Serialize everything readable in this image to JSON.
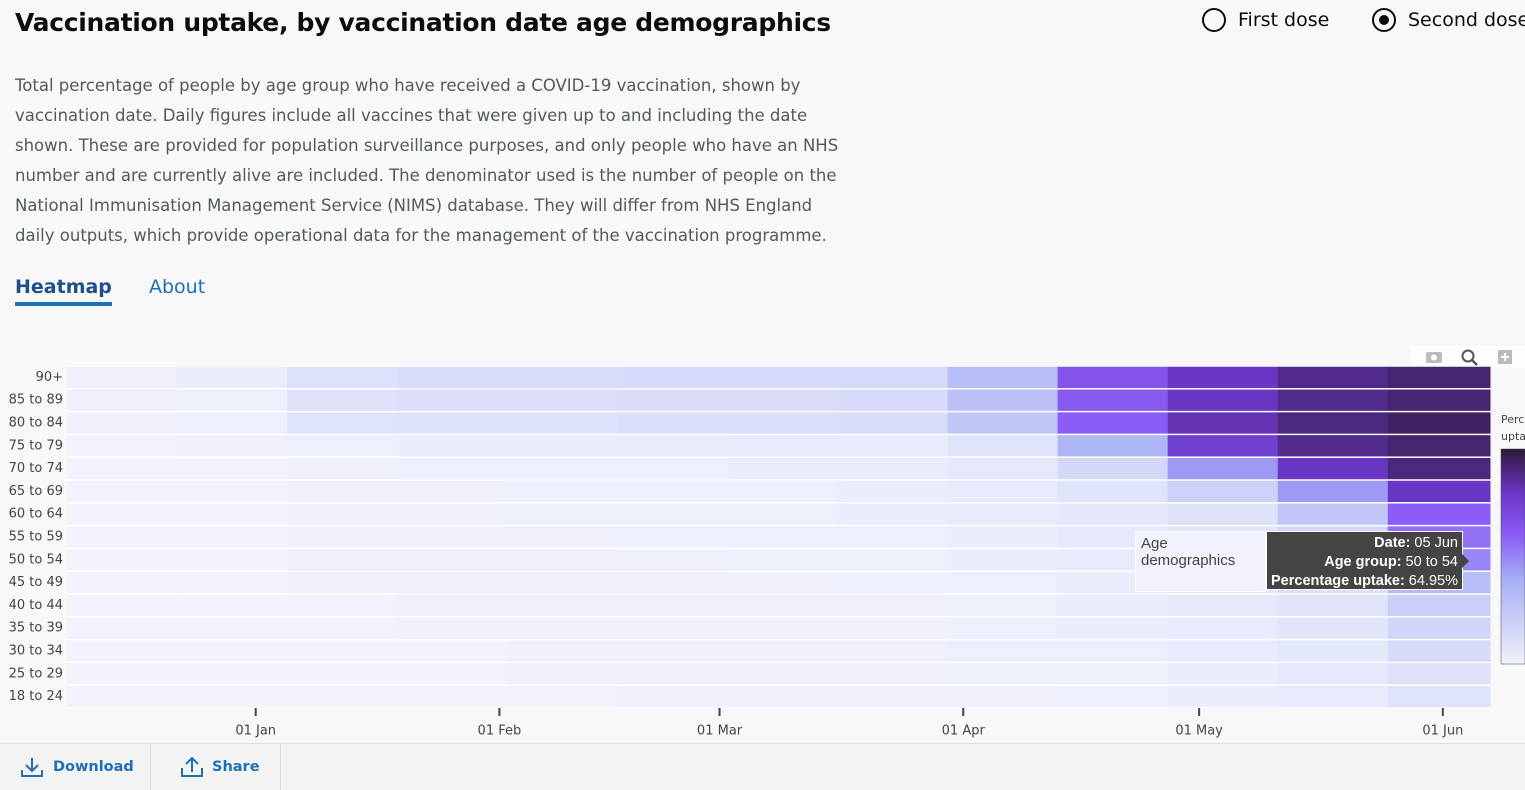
{
  "header": {
    "title": "Vaccination uptake, by vaccination date age demographics",
    "radio": [
      {
        "label": "First dose",
        "selected": false
      },
      {
        "label": "Second dose",
        "selected": true
      }
    ]
  },
  "description": [
    "Total percentage of people by age group who have received a COVID-19 vaccination, shown by",
    "vaccination date. Daily figures include all vaccines that were given up to and including the date",
    "shown. These are provided for population surveillance purposes, and only people who have an NHS",
    "number and are currently alive are included. The denominator used is the number of people on the",
    "National Immunisation Management Service (NIMS) database. They will differ from NHS England",
    "daily outputs, which provide operational data for the management of the vaccination programme."
  ],
  "tabs": [
    {
      "label": "Heatmap",
      "active": true
    },
    {
      "label": "About",
      "active": false
    }
  ],
  "chart_data": {
    "type": "heatmap",
    "categories": [
      "90+",
      "85 to 89",
      "80 to 84",
      "75 to 79",
      "70 to 74",
      "65 to 69",
      "60 to 64",
      "55 to 59",
      "50 to 54",
      "45 to 49",
      "40 to 44",
      "35 to 39",
      "30 to 34",
      "25 to 29",
      "18 to 24"
    ],
    "x": [
      "08 Dec",
      "22 Dec",
      "05 Jan",
      "19 Jan",
      "02 Feb",
      "16 Feb",
      "02 Mar",
      "16 Mar",
      "30 Mar",
      "13 Apr",
      "27 Apr",
      "11 May",
      "25 May"
    ],
    "xlim": [
      "08 Dec",
      "07 Jun"
    ],
    "xticks": [
      "01 Jan",
      "01 Feb",
      "01 Mar",
      "01 Apr",
      "01 May",
      "01 Jun"
    ],
    "z": [
      [
        1,
        3,
        10,
        12,
        12,
        13,
        13,
        14,
        30,
        65,
        80,
        88,
        92
      ],
      [
        1,
        2,
        9,
        11,
        11,
        12,
        12,
        13,
        28,
        62,
        80,
        88,
        92
      ],
      [
        1,
        2,
        8,
        10,
        10,
        11,
        11,
        12,
        25,
        60,
        82,
        90,
        94
      ],
      [
        0,
        1,
        2,
        3,
        3,
        3,
        4,
        4,
        8,
        35,
        75,
        88,
        92
      ],
      [
        0,
        0,
        1,
        2,
        2,
        2,
        3,
        3,
        5,
        15,
        45,
        80,
        90
      ],
      [
        0,
        0,
        1,
        1,
        2,
        2,
        2,
        3,
        4,
        8,
        18,
        45,
        80
      ],
      [
        0,
        0,
        1,
        1,
        2,
        2,
        2,
        3,
        4,
        6,
        10,
        25,
        60
      ],
      [
        0,
        0,
        1,
        1,
        1,
        2,
        2,
        2,
        3,
        5,
        8,
        15,
        55
      ],
      [
        0,
        0,
        1,
        1,
        1,
        1,
        2,
        2,
        3,
        4,
        7,
        12,
        50
      ],
      [
        0,
        0,
        1,
        1,
        1,
        1,
        1,
        2,
        2,
        3,
        6,
        10,
        30
      ],
      [
        0,
        0,
        0,
        1,
        1,
        1,
        1,
        1,
        2,
        3,
        5,
        8,
        20
      ],
      [
        0,
        0,
        0,
        1,
        1,
        1,
        1,
        1,
        2,
        3,
        4,
        7,
        16
      ],
      [
        0,
        0,
        0,
        0,
        1,
        1,
        1,
        1,
        2,
        2,
        4,
        6,
        13
      ],
      [
        0,
        0,
        0,
        0,
        1,
        1,
        1,
        1,
        2,
        2,
        3,
        5,
        10
      ],
      [
        0,
        0,
        0,
        0,
        0,
        1,
        1,
        1,
        1,
        2,
        3,
        4,
        8
      ]
    ],
    "zlim": [
      0,
      100
    ],
    "colorscale": [
      "#f0f2fc",
      "#c9cff7",
      "#a5adf6",
      "#8b5cf6",
      "#6a36c4",
      "#2c1838"
    ],
    "colorbar_title": [
      "Percentage",
      "uptake"
    ],
    "tooltip": {
      "trace": "Age demographics",
      "lines": [
        {
          "label": "Date:",
          "value": "05 Jun"
        },
        {
          "label": "Age group:",
          "value": "50 to 54"
        },
        {
          "label": "Percentage uptake:",
          "value": "64.95%"
        }
      ]
    }
  },
  "footer": {
    "buttons": [
      "Download",
      "Share"
    ]
  }
}
